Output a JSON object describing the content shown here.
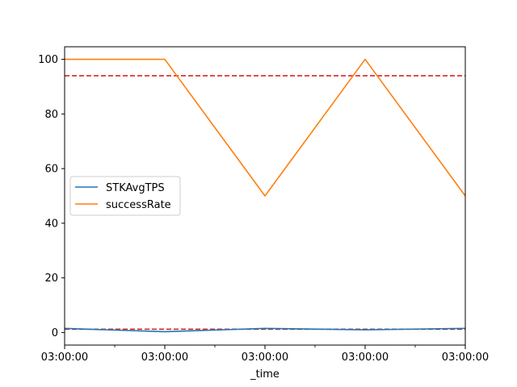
{
  "chart_data": {
    "type": "line",
    "title": "",
    "xlabel": "_time",
    "ylabel": "",
    "x_tick_labels": [
      "03:00:00",
      "03:00:00",
      "03:00:00",
      "03:00:00",
      "03:00:00"
    ],
    "x_positions": [
      0,
      1,
      2,
      3,
      4
    ],
    "minor_x_ticks": [
      0.5,
      1.5,
      2.5,
      3.5
    ],
    "xlim": [
      0,
      4
    ],
    "ylim": [
      -4.6,
      104.6
    ],
    "y_ticks": [
      0,
      20,
      40,
      60,
      80,
      100
    ],
    "y_tick_labels": [
      "0",
      "20",
      "40",
      "60",
      "80",
      "100"
    ],
    "legend_position": "center-left",
    "grid": false,
    "series": [
      {
        "name": "STKAvgTPS",
        "color": "#1f77b4",
        "values": [
          1.5,
          0.3,
          1.5,
          1.0,
          1.5
        ]
      },
      {
        "name": "successRate",
        "color": "#ff7f0e",
        "values": [
          100,
          100,
          50,
          100,
          50
        ]
      }
    ],
    "reference_lines": [
      {
        "y": 94,
        "color": "#d62728",
        "style": "dashed"
      },
      {
        "y": 1.2,
        "color": "#d62728",
        "style": "dashed"
      }
    ]
  }
}
